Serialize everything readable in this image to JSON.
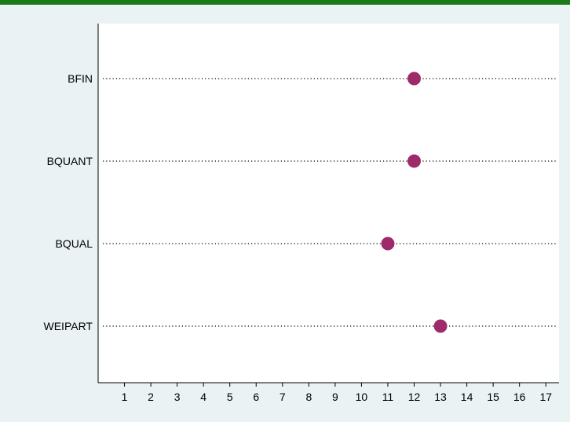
{
  "colors": {
    "background": "#eaf2f3",
    "plot_background": "#ffffff",
    "top_rule": "#1a7a1a",
    "marker": "#9e2a6a",
    "axis": "#000000",
    "guide_line": "#000000"
  },
  "chart_data": {
    "type": "scatter",
    "style": "dot-plot",
    "orientation": "horizontal",
    "title": "",
    "xlabel": "",
    "ylabel": "",
    "categories": [
      "BFIN",
      "BQUANT",
      "BQUAL",
      "WEIPART"
    ],
    "values": [
      12,
      12,
      11,
      13
    ],
    "x_ticks": [
      1,
      2,
      3,
      4,
      5,
      6,
      7,
      8,
      9,
      10,
      11,
      12,
      13,
      14,
      15,
      16,
      17
    ],
    "xlim": [
      0,
      17.5
    ],
    "grid": false,
    "guide_lines": "dotted",
    "legend": "none"
  }
}
